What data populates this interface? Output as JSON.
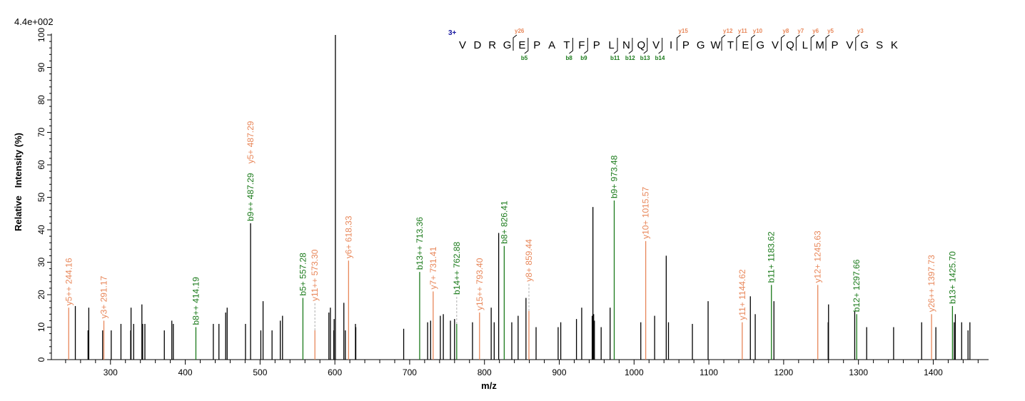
{
  "chart_data": {
    "type": "bar",
    "scale_label": "4.4e+002",
    "xlabel": "m/z",
    "ylabel": "Relative   Intensity (%)",
    "xlim": [
      221,
      1474
    ],
    "ylim": [
      0,
      100
    ],
    "x_ticks": [
      300,
      400,
      500,
      600,
      700,
      800,
      900,
      1000,
      1100,
      1200,
      1300,
      1400
    ],
    "y_ticks": [
      0,
      10,
      20,
      30,
      40,
      50,
      60,
      70,
      80,
      90,
      100
    ],
    "grid": false,
    "colors": {
      "b_ion": "#1a7a1a",
      "y_ion": "#e8875a",
      "unassigned": "#000000",
      "charge": "#1a1aa0",
      "guide": "#b0b0b0"
    },
    "peptide": {
      "charge": "3+",
      "sequence": "VDRGEPATFPLNQVIPGWTEGVQLMPVGSK",
      "b_ions": [
        5,
        8,
        9,
        11,
        12,
        13,
        14
      ],
      "y_ions": [
        26,
        15,
        12,
        11,
        10,
        8,
        7,
        6,
        5,
        3
      ]
    },
    "annotated_peaks": [
      {
        "mz": 244.16,
        "intensity": 16,
        "label": "y5++ 244.16",
        "ion": "y"
      },
      {
        "mz": 291.17,
        "intensity": 12,
        "label": "y3+ 291.17",
        "ion": "y"
      },
      {
        "mz": 414.19,
        "intensity": 10,
        "label": "b8++ 414.19",
        "ion": "b"
      },
      {
        "mz": 487.29,
        "intensity": 42,
        "label": "b9++ 487.29",
        "ion": "b",
        "line": "unassigned"
      },
      {
        "mz": 487.29,
        "intensity": 42,
        "label": "y5+ 487.29",
        "ion": "y",
        "stacked": true,
        "line": "none"
      },
      {
        "mz": 557.28,
        "intensity": 19,
        "label": "b5+ 557.28",
        "ion": "b"
      },
      {
        "mz": 573.3,
        "intensity": 9,
        "label": "y11++ 573.30",
        "ion": "y",
        "dashed": true
      },
      {
        "mz": 618.33,
        "intensity": 30.5,
        "label": "y6+ 618.33",
        "ion": "y"
      },
      {
        "mz": 713.36,
        "intensity": 27,
        "label": "b13++ 713.36",
        "ion": "b"
      },
      {
        "mz": 731.41,
        "intensity": 21,
        "label": "y7+ 731.41",
        "ion": "y"
      },
      {
        "mz": 762.88,
        "intensity": 11,
        "label": "b14++ 762.88",
        "ion": "b",
        "dashed": true
      },
      {
        "mz": 793.4,
        "intensity": 14.5,
        "label": "y15++ 793.40",
        "ion": "y"
      },
      {
        "mz": 826.41,
        "intensity": 35,
        "label": "b8+ 826.41",
        "ion": "b"
      },
      {
        "mz": 859.44,
        "intensity": 15,
        "label": "y8+ 859.44",
        "ion": "y",
        "dashed": true
      },
      {
        "mz": 973.48,
        "intensity": 49,
        "label": "b9+ 973.48",
        "ion": "b"
      },
      {
        "mz": 1015.57,
        "intensity": 36.5,
        "label": "y10+ 1015.57",
        "ion": "y"
      },
      {
        "mz": 1144.62,
        "intensity": 11.5,
        "label": "y11+ 1144.62",
        "ion": "y"
      },
      {
        "mz": 1183.62,
        "intensity": 23,
        "label": "b11+ 1183.62",
        "ion": "b"
      },
      {
        "mz": 1245.63,
        "intensity": 23,
        "label": "y12+ 1245.63",
        "ion": "y"
      },
      {
        "mz": 1297.66,
        "intensity": 14,
        "label": "b12+ 1297.66",
        "ion": "b"
      },
      {
        "mz": 1397.73,
        "intensity": 14,
        "label": "y26++ 1397.73",
        "ion": "y"
      },
      {
        "mz": 1425.7,
        "intensity": 16.5,
        "label": "b13+ 1425.70",
        "ion": "b"
      }
    ],
    "unassigned_peaks": [
      [
        253,
        16.5
      ],
      [
        270,
        9
      ],
      [
        271,
        16
      ],
      [
        289.5,
        9
      ],
      [
        301,
        9
      ],
      [
        314,
        11
      ],
      [
        327,
        9
      ],
      [
        327.5,
        16
      ],
      [
        331,
        11
      ],
      [
        342,
        17
      ],
      [
        343,
        11
      ],
      [
        346,
        11
      ],
      [
        372,
        9
      ],
      [
        382,
        12
      ],
      [
        384,
        11
      ],
      [
        437.5,
        11
      ],
      [
        445,
        11
      ],
      [
        454,
        14.5
      ],
      [
        456,
        16
      ],
      [
        480.5,
        11
      ],
      [
        501,
        9
      ],
      [
        504,
        18
      ],
      [
        516,
        9
      ],
      [
        527,
        12
      ],
      [
        530,
        13.5
      ],
      [
        592,
        14.5
      ],
      [
        594,
        16
      ],
      [
        598.5,
        9
      ],
      [
        599,
        12.5
      ],
      [
        600.7,
        100
      ],
      [
        612,
        17.5
      ],
      [
        614,
        9
      ],
      [
        627.5,
        11
      ],
      [
        628,
        10
      ],
      [
        692,
        9.5
      ],
      [
        724,
        11.5
      ],
      [
        728,
        12
      ],
      [
        741,
        13.5
      ],
      [
        745,
        14
      ],
      [
        754.5,
        12
      ],
      [
        760,
        12.5
      ],
      [
        784,
        11.5
      ],
      [
        809,
        16
      ],
      [
        813,
        11.5
      ],
      [
        819,
        39
      ],
      [
        836.5,
        11.5
      ],
      [
        845,
        13.5
      ],
      [
        855.5,
        19
      ],
      [
        869,
        10
      ],
      [
        898.5,
        10
      ],
      [
        902,
        11.5
      ],
      [
        923,
        12.5
      ],
      [
        930,
        16
      ],
      [
        944,
        13.5
      ],
      [
        945,
        47
      ],
      [
        946,
        14
      ],
      [
        947,
        12
      ],
      [
        956,
        10
      ],
      [
        968,
        16
      ],
      [
        1009,
        11.5
      ],
      [
        1027.5,
        13.5
      ],
      [
        1043,
        32
      ],
      [
        1046,
        11.5
      ],
      [
        1078,
        11
      ],
      [
        1099,
        18
      ],
      [
        1155.5,
        19.5
      ],
      [
        1162,
        14
      ],
      [
        1187,
        18
      ],
      [
        1259.5,
        11.5
      ],
      [
        1260,
        17
      ],
      [
        1295,
        15
      ],
      [
        1311,
        10
      ],
      [
        1347,
        10
      ],
      [
        1384.5,
        11.5
      ],
      [
        1403.5,
        10
      ],
      [
        1428,
        11.5
      ],
      [
        1429.5,
        14
      ],
      [
        1438,
        11.5
      ],
      [
        1446.5,
        9
      ],
      [
        1449,
        11.5
      ]
    ]
  }
}
